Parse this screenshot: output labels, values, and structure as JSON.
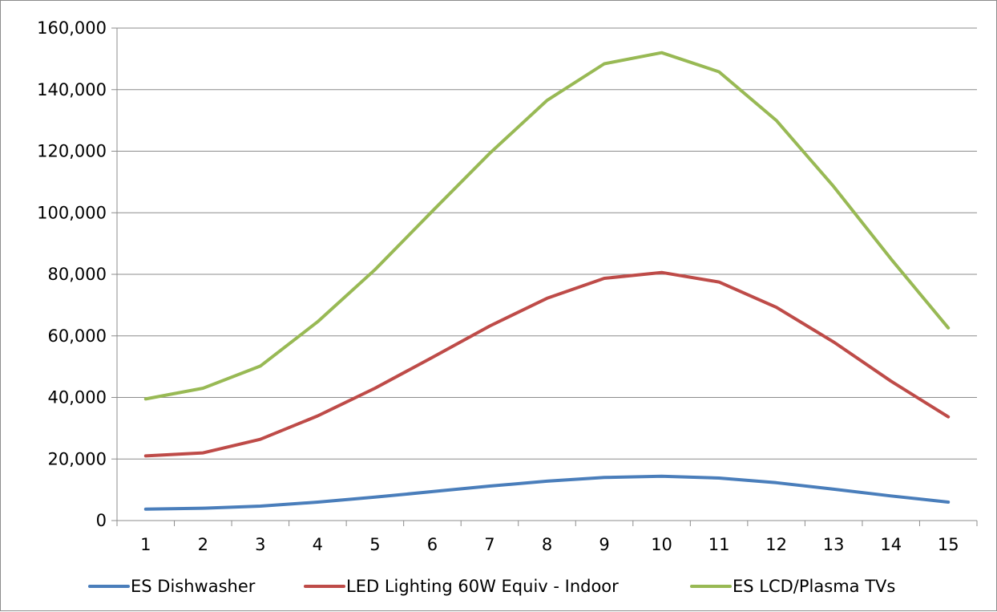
{
  "chart_data": {
    "type": "line",
    "title": "",
    "xlabel": "",
    "ylabel": "",
    "x": [
      1,
      2,
      3,
      4,
      5,
      6,
      7,
      8,
      9,
      10,
      11,
      12,
      13,
      14,
      15
    ],
    "x_tick_labels": [
      "1",
      "2",
      "3",
      "4",
      "5",
      "6",
      "7",
      "8",
      "9",
      "10",
      "11",
      "12",
      "13",
      "14",
      "15"
    ],
    "ylim": [
      0,
      160000
    ],
    "y_ticks": [
      0,
      20000,
      40000,
      60000,
      80000,
      100000,
      120000,
      140000,
      160000
    ],
    "y_tick_labels": [
      "0",
      "20,000",
      "40,000",
      "60,000",
      "80,000",
      "100,000",
      "120,000",
      "140,000",
      "160,000"
    ],
    "grid": "horizontal",
    "legend_position": "bottom",
    "series": [
      {
        "name": "ES Dishwasher",
        "color": "#4a7ebb",
        "values": [
          3700,
          4000,
          4700,
          6000,
          7600,
          9400,
          11200,
          12800,
          14000,
          14400,
          13800,
          12300,
          10200,
          8000,
          6000
        ]
      },
      {
        "name": "LED Lighting 60W Equiv - Indoor",
        "color": "#be4b48",
        "values": [
          21000,
          22000,
          26400,
          34000,
          43000,
          53000,
          63200,
          72200,
          78700,
          80600,
          77500,
          69300,
          58000,
          45300,
          33700
        ]
      },
      {
        "name": "ES LCD/Plasma TVs",
        "color": "#98b954",
        "values": [
          39500,
          43000,
          50200,
          64600,
          81500,
          100500,
          119300,
          136500,
          148400,
          152000,
          145800,
          130000,
          108500,
          85000,
          62600
        ]
      }
    ]
  }
}
